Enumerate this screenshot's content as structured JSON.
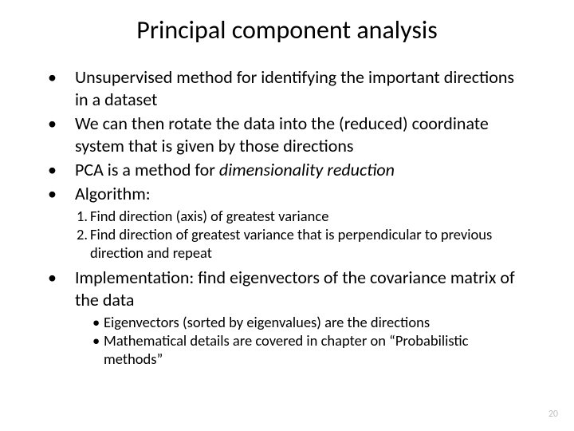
{
  "title": "Principal component analysis",
  "bullets_a": [
    "Unsupervised method for identifying the important directions in a dataset",
    "We can then rotate the data into the (reduced) coordinate system that is given by those directions"
  ],
  "bullet_pca_pre": "PCA is a method for ",
  "bullet_pca_em": "dimensionality reduction",
  "bullet_algo": "Algorithm:",
  "steps": [
    "Find direction (axis) of greatest variance",
    "Find direction of greatest variance that is perpendicular to previous direction and repeat"
  ],
  "bullet_impl": "Implementation: find eigenvectors of the covariance matrix of the data",
  "subnotes": [
    "Eigenvectors (sorted by eigenvalues) are the directions",
    "Mathematical details are covered in chapter on “Probabilistic methods”"
  ],
  "page_number": "20"
}
